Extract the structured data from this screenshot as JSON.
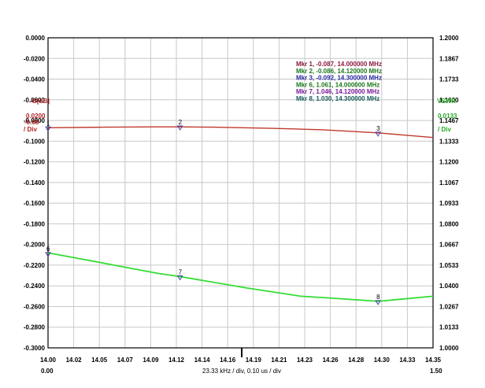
{
  "chart_data": {
    "type": "line",
    "x_ticks": [
      "14.00",
      "14.02",
      "14.05",
      "14.07",
      "14.09",
      "14.12",
      "14.14",
      "14.16",
      "14.19",
      "14.21",
      "14.23",
      "14.26",
      "14.28",
      "14.30",
      "14.33",
      "14.35"
    ],
    "xlim": [
      14.0,
      14.35
    ],
    "left_axis": {
      "label": "-G[dB]",
      "scale": "0.0200",
      "scale_unit": "/ Div",
      "ref_value": "-0.08",
      "ylim": [
        -0.3,
        0.0
      ],
      "ticks": [
        "0.0000",
        "-0.0200",
        "-0.0400",
        "-0.0600",
        "-0.0800",
        "-0.1000",
        "-0.1200",
        "-0.1400",
        "-0.1600",
        "-0.1800",
        "-0.2000",
        "-0.2200",
        "-0.2400",
        "-0.2600",
        "-0.2800",
        "-0.3000"
      ],
      "color": "#b22222"
    },
    "right_axis": {
      "label": "VSWR",
      "scale": "0.0133",
      "scale_unit": "/ Div",
      "ylim": [
        1.0,
        1.2
      ],
      "ticks": [
        "1.2000",
        "1.1867",
        "1.1733",
        "1.1600",
        "1.1467",
        "1.1333",
        "1.1200",
        "1.1067",
        "1.0933",
        "1.0800",
        "1.0667",
        "1.0533",
        "1.0400",
        "1.0267",
        "1.0133",
        "1.0000"
      ],
      "color": "#22aa22"
    },
    "series": [
      {
        "axis": "left",
        "color": "#c0392b",
        "x": [
          14.0,
          14.05,
          14.1,
          14.12,
          14.15,
          14.2,
          14.25,
          14.3,
          14.35
        ],
        "y": [
          -0.087,
          -0.0865,
          -0.0862,
          -0.0862,
          -0.0865,
          -0.0875,
          -0.089,
          -0.092,
          -0.0965
        ]
      },
      {
        "axis": "right",
        "color": "#33dd33",
        "x": [
          14.0,
          14.05,
          14.1,
          14.12,
          14.18,
          14.23,
          14.26,
          14.3,
          14.35
        ],
        "y": [
          1.0613,
          1.0547,
          1.048,
          1.046,
          1.0387,
          1.0333,
          1.032,
          1.03,
          1.0333
        ]
      }
    ],
    "markers": [
      {
        "label": "1",
        "axis": "left",
        "x": 14.0,
        "y": -0.087
      },
      {
        "label": "2",
        "axis": "left",
        "x": 14.12,
        "y": -0.086
      },
      {
        "label": "3",
        "axis": "left",
        "x": 14.3,
        "y": -0.092
      },
      {
        "label": "6",
        "axis": "right",
        "x": 14.0,
        "y": 1.061
      },
      {
        "label": "7",
        "axis": "right",
        "x": 14.12,
        "y": 1.046
      },
      {
        "label": "8",
        "axis": "right",
        "x": 14.3,
        "y": 1.03
      }
    ],
    "legend": [
      {
        "text": "Mkr 1, -0.087, 14.000000 MHz",
        "color": "#8b1a3a"
      },
      {
        "text": "Mkr 2, -0.086, 14.120000 MHz",
        "color": "#1a7a1a"
      },
      {
        "text": "Mkr 3, -0.092, 14.300000 MHz",
        "color": "#2a2aa0"
      },
      {
        "text": "Mkr 6, 1.061, 14.000000 MHz",
        "color": "#1a7a1a"
      },
      {
        "text": "Mkr 7, 1.046, 14.120000 MHz",
        "color": "#7a1a9a"
      },
      {
        "text": "Mkr 8, 1.030, 14.300000 MHz",
        "color": "#1a5a5a"
      }
    ],
    "legend_placement": "top-right",
    "bottom_left": "0.00",
    "bottom_right": "1.50",
    "x_caption": "23.33 kHz / div, 0.10 us / div",
    "grid": true
  }
}
